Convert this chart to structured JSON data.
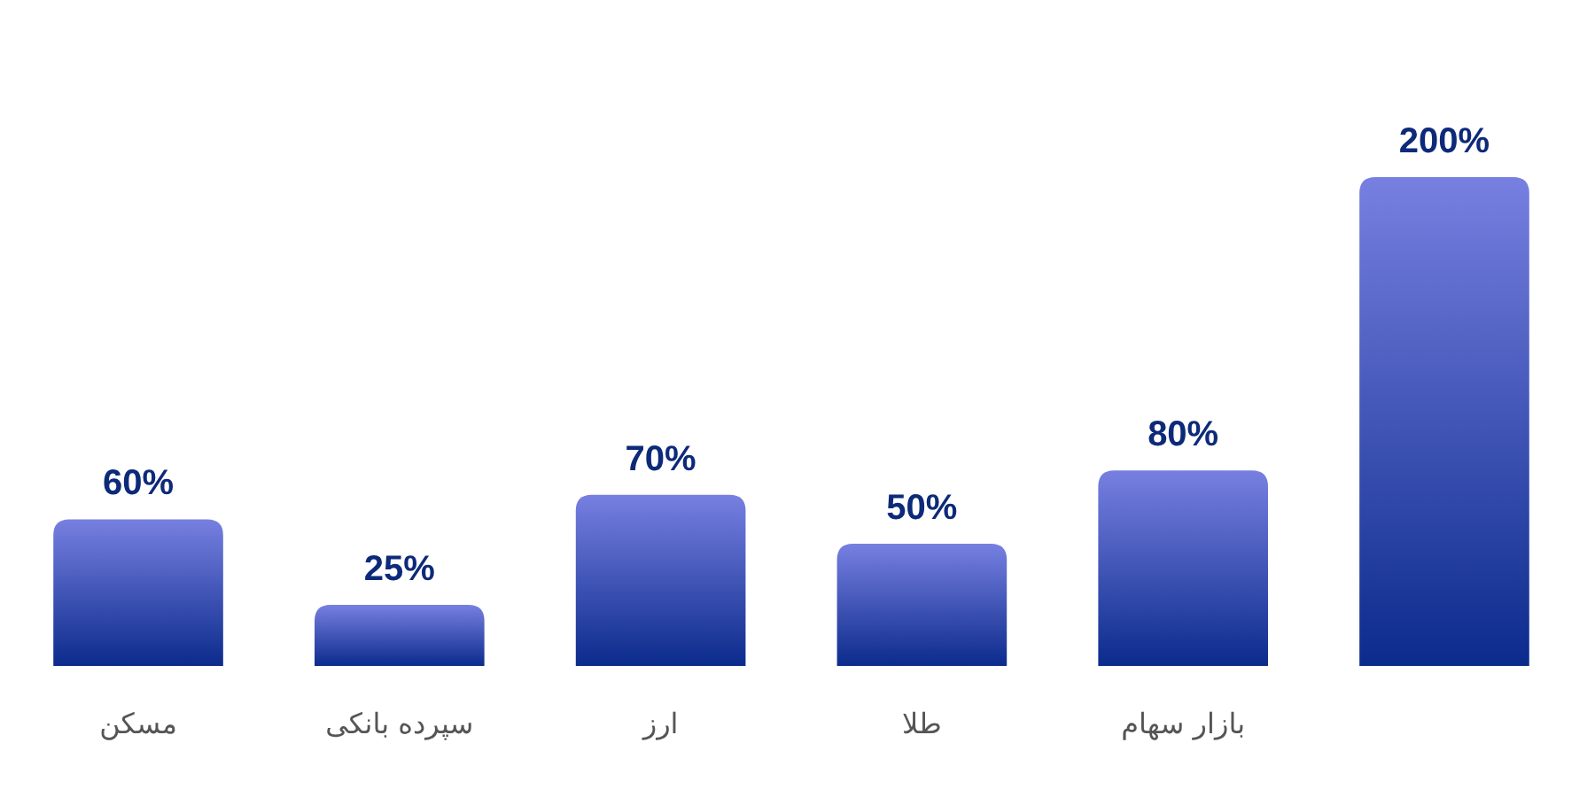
{
  "chart_data": {
    "type": "bar",
    "categories": [
      "مسکن",
      "سپرده بانکی",
      "ارز",
      "طلا",
      "بازار سهام",
      null
    ],
    "values": [
      60,
      25,
      70,
      50,
      80,
      200
    ],
    "color": "#0b2b8c",
    "value_labels": [
      "60%",
      "25%",
      "70%",
      "50%",
      "80%",
      "200%"
    ]
  }
}
